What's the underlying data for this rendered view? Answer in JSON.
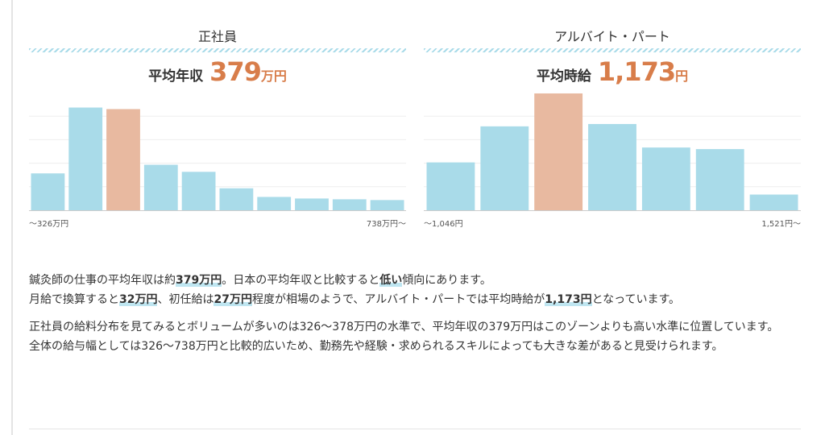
{
  "colors": {
    "bar": "#a9dbe9",
    "highlight": "#e8b9a0",
    "accent": "#d87d4a",
    "grid": "#eeeeee"
  },
  "chart_data": [
    {
      "type": "bar",
      "title": "正社員",
      "headline_label": "平均年収",
      "headline_value": "379",
      "headline_unit": "万円",
      "x_min_label": "〜326万円",
      "x_max_label": "738万円〜",
      "values": [
        47,
        131,
        129,
        58,
        49,
        28,
        17,
        15,
        14,
        13
      ],
      "highlight_index": 2,
      "ylim": [
        0,
        150
      ],
      "grid": true
    },
    {
      "type": "bar",
      "title": "アルバイト・パート",
      "headline_label": "平均時給",
      "headline_value": "1,173",
      "headline_unit": "円",
      "x_min_label": "〜1,046円",
      "x_max_label": "1,521円〜",
      "values": [
        61,
        107,
        149,
        110,
        80,
        78,
        20
      ],
      "highlight_index": 2,
      "ylim": [
        0,
        150
      ],
      "grid": true
    }
  ],
  "summary": {
    "p1": [
      {
        "t": "鍼灸師の仕事の平均年収は約"
      },
      {
        "t": "379万円",
        "em": true
      },
      {
        "t": "。日本の平均年収と比較すると"
      },
      {
        "t": "低い",
        "em": true
      },
      {
        "t": "傾向にあります。"
      },
      {
        "br": true
      },
      {
        "t": "月給で換算すると"
      },
      {
        "t": "32万円",
        "em": true
      },
      {
        "t": "、初任給は"
      },
      {
        "t": "27万円",
        "em": true
      },
      {
        "t": "程度が相場のようで、アルバイト・パートでは平均時給が"
      },
      {
        "t": "1,173円",
        "em": true
      },
      {
        "t": "となっています。"
      }
    ],
    "p2": [
      {
        "t": "正社員の給料分布を見てみるとボリュームが多いのは326〜378万円の水準で、平均年収の379万円はこのゾーンよりも高い水準に位置しています。"
      },
      {
        "br": true
      },
      {
        "t": "全体の給与幅としては326〜738万円と比較的広いため、勤務先や経験・求められるスキルによっても大きな差があると見受けられます。"
      }
    ]
  }
}
